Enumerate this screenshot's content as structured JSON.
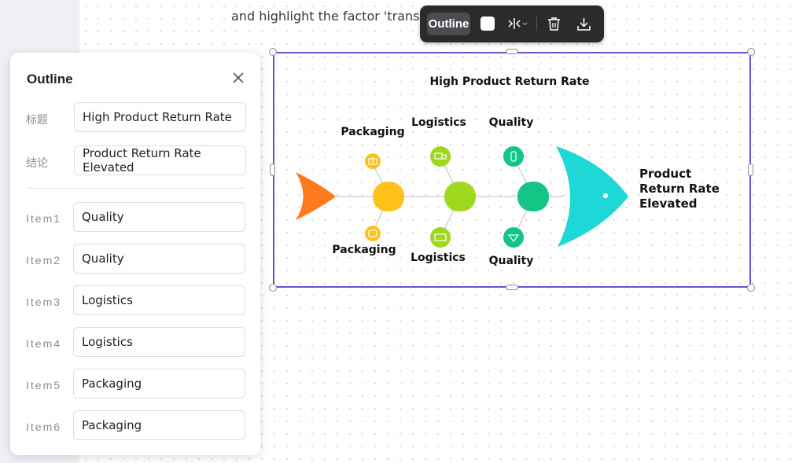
{
  "prompt_text": "and highlight the factor 'transporta",
  "toolbar": {
    "outline_label": "Outline",
    "icons": [
      "color-swatch-icon",
      "flip-icon",
      "trash-icon",
      "download-icon"
    ]
  },
  "outline_panel": {
    "title": "Outline",
    "fields": [
      {
        "label": "标题",
        "value": "High Product Return Rate"
      },
      {
        "label": "结论",
        "value": "Product Return Rate Elevated"
      }
    ],
    "items": [
      {
        "label": "Item1",
        "value": "Quality"
      },
      {
        "label": "Item2",
        "value": "Quality"
      },
      {
        "label": "Item3",
        "value": "Logistics"
      },
      {
        "label": "Item4",
        "value": "Logistics"
      },
      {
        "label": "Item5",
        "value": "Packaging"
      },
      {
        "label": "Item6",
        "value": "Packaging"
      }
    ]
  },
  "diagram": {
    "title": "High Product Return Rate",
    "conclusion_lines": [
      "Product",
      "Return Rate",
      "Elevated"
    ],
    "top_labels": [
      "Packaging",
      "Logistics",
      "Quality"
    ],
    "bottom_labels": [
      "Packaging",
      "Logistics",
      "Quality"
    ],
    "colors": {
      "tail": "#ff7a1f",
      "packaging": "#ffc21a",
      "logistics": "#9fd81f",
      "quality": "#14c586",
      "head": "#1ed7d7",
      "selection": "#5b57d6"
    }
  }
}
